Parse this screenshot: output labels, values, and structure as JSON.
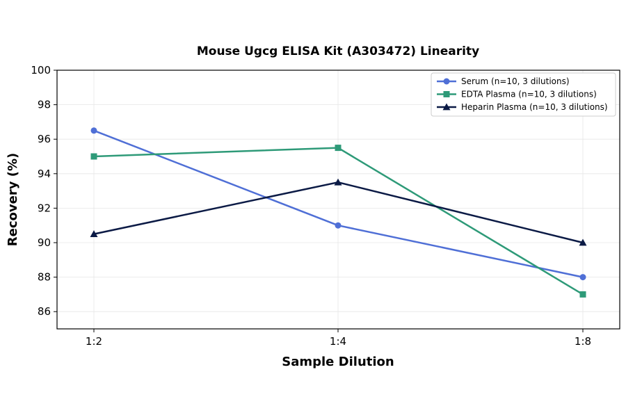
{
  "chart_data": {
    "type": "line",
    "title": "Mouse Ugcg ELISA Kit (A303472) Linearity",
    "xlabel": "Sample Dilution",
    "ylabel": "Recovery (%)",
    "categories": [
      "1:2",
      "1:4",
      "1:8"
    ],
    "ylim": [
      85,
      100
    ],
    "yticks": [
      86,
      88,
      90,
      92,
      94,
      96,
      98,
      100
    ],
    "grid": true,
    "legend_position": "top-right",
    "series": [
      {
        "name": "Serum (n=10, 3 dilutions)",
        "values": [
          96.5,
          91.0,
          88.0
        ],
        "color": "#4f6fd6",
        "marker": "circle"
      },
      {
        "name": "EDTA Plasma (n=10, 3 dilutions)",
        "values": [
          95.0,
          95.5,
          87.0
        ],
        "color": "#2e9a78",
        "marker": "square"
      },
      {
        "name": "Heparin Plasma (n=10, 3 dilutions)",
        "values": [
          90.5,
          93.5,
          90.0
        ],
        "color": "#0b1a45",
        "marker": "triangle"
      }
    ]
  }
}
